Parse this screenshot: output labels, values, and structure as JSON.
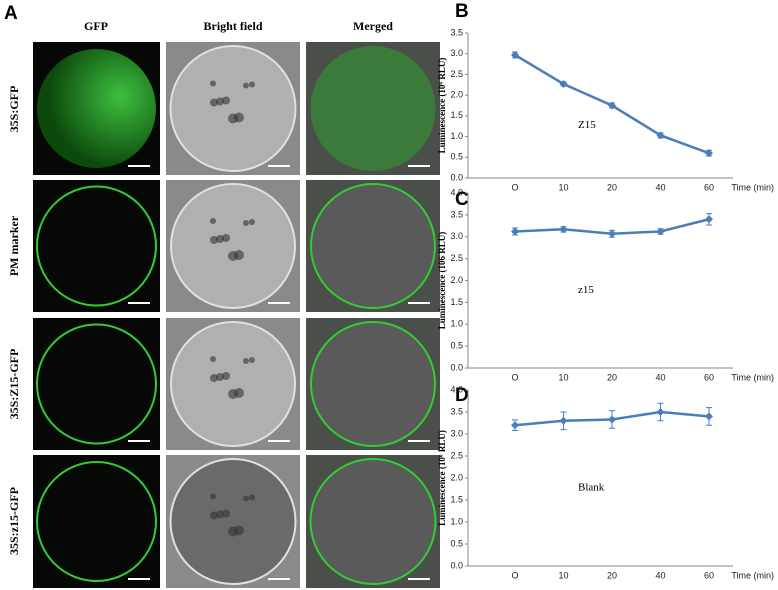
{
  "figure": {
    "panel_label": "A",
    "columns": [
      "GFP",
      "Bright field",
      "Merged"
    ],
    "rows": [
      "35S:GFP",
      "PM marker",
      "35S:Z15-GFP",
      "35S:z15-GFP"
    ]
  },
  "chart_data": [
    {
      "type": "line",
      "panel_label": "B",
      "ylabel": "Luminescence (10⁶ RLU)",
      "xlabel": "Time (min)",
      "annotation": "Z15",
      "categories": [
        "O",
        "10",
        "20",
        "40",
        "60"
      ],
      "color": "#4a7ebb",
      "values": [
        2.97,
        2.27,
        1.75,
        1.03,
        0.6
      ],
      "errors": [
        0.07,
        0.05,
        0.06,
        0.06,
        0.07
      ],
      "ylim": [
        0,
        3.5
      ],
      "yticks": [
        {
          "value": 0,
          "label": "0.0"
        },
        0.5,
        {
          "value": 1,
          "label": "1.0"
        },
        1.5,
        {
          "value": 2,
          "label": "2.0"
        },
        2.5,
        {
          "value": 3,
          "label": "3.0"
        },
        3.5
      ]
    },
    {
      "type": "line",
      "panel_label": "C",
      "ylabel": "Luminescence (106 RLU)",
      "xlabel": "Time (min)",
      "annotation": "z15",
      "categories": [
        "O",
        "10",
        "20",
        "40",
        "60"
      ],
      "color": "#4a7ebb",
      "values": [
        3.12,
        3.17,
        3.07,
        3.12,
        3.4
      ],
      "errors": [
        0.08,
        0.06,
        0.08,
        0.06,
        0.13
      ],
      "ylim": [
        0,
        4
      ],
      "yticks": [
        {
          "value": 0,
          "label": "0.0"
        },
        0.5,
        {
          "value": 1,
          "label": "1.0"
        },
        1.5,
        {
          "value": 2,
          "label": "2.0"
        },
        2.5,
        {
          "value": 3,
          "label": "3.0"
        },
        3.5,
        {
          "value": 4,
          "label": "4.0"
        }
      ]
    },
    {
      "type": "line",
      "panel_label": "D",
      "ylabel": "Luminescence (10⁶ RLU)",
      "xlabel": "Time (min)",
      "annotation": "Blank",
      "categories": [
        "O",
        "10",
        "20",
        "40",
        "60"
      ],
      "color": "#4a7ebb",
      "values": [
        3.2,
        3.3,
        3.33,
        3.5,
        3.4
      ],
      "errors": [
        0.12,
        0.2,
        0.2,
        0.2,
        0.2
      ],
      "ylim": [
        0,
        4
      ],
      "yticks": [
        {
          "value": 0,
          "label": "0.0"
        },
        0.5,
        {
          "value": 1,
          "label": "1.0"
        },
        1.5,
        {
          "value": 2,
          "label": "2.0"
        },
        2.5,
        {
          "value": 3,
          "label": "3.0"
        },
        3.5,
        {
          "value": 4,
          "label": "4.0"
        }
      ]
    }
  ]
}
